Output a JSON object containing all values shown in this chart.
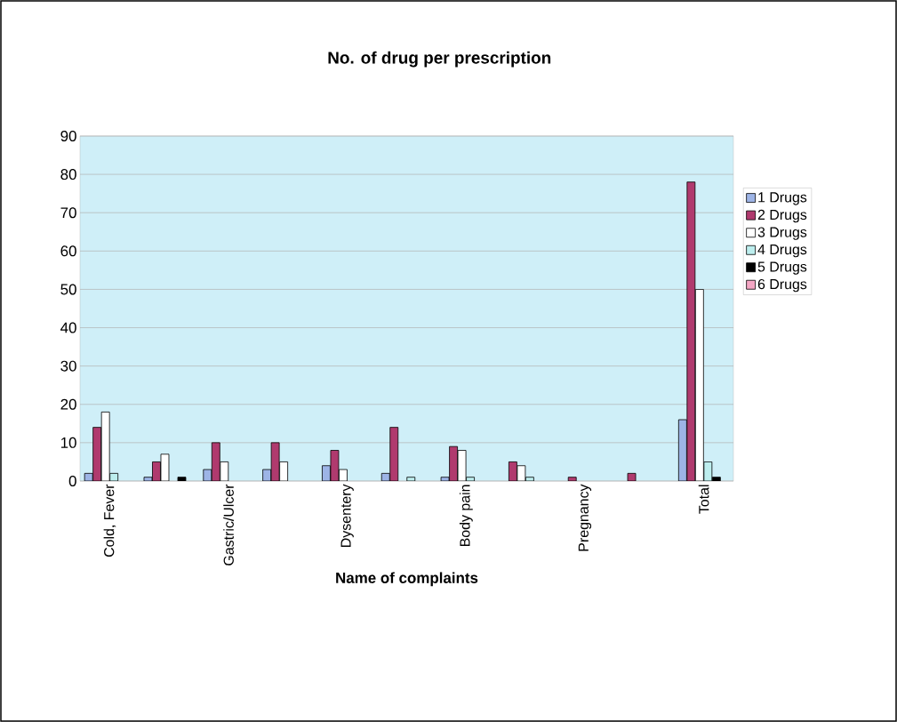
{
  "chart_data": {
    "type": "bar",
    "title": "No. of drug per prescription",
    "xlabel": "Name of complaints",
    "categories": [
      "Cold, Fever",
      null,
      "Gastric/Ulcer",
      null,
      "Dysentery",
      null,
      "Body pain",
      null,
      "Pregnancy",
      null,
      "Total"
    ],
    "series": [
      {
        "name": "1 Drugs",
        "color": "#9db4e6",
        "values": [
          2,
          1,
          3,
          3,
          4,
          2,
          1,
          null,
          null,
          null,
          16
        ]
      },
      {
        "name": "2 Drugs",
        "color": "#b03a6e",
        "values": [
          14,
          5,
          10,
          10,
          8,
          14,
          9,
          5,
          1,
          2,
          78
        ]
      },
      {
        "name": "3 Drugs",
        "color": "#ffffff",
        "values": [
          18,
          7,
          5,
          5,
          3,
          null,
          8,
          4,
          null,
          null,
          50
        ]
      },
      {
        "name": "4 Drugs",
        "color": "#bdeeee",
        "values": [
          2,
          null,
          null,
          null,
          null,
          1,
          1,
          1,
          null,
          null,
          5
        ]
      },
      {
        "name": "5 Drugs",
        "color": "#000000",
        "values": [
          null,
          1,
          null,
          null,
          null,
          null,
          null,
          null,
          null,
          null,
          1
        ]
      },
      {
        "name": "6 Drugs",
        "color": "#f4a6c4",
        "values": [
          null,
          null,
          null,
          null,
          null,
          null,
          null,
          null,
          null,
          null,
          null
        ]
      }
    ],
    "ylim": [
      0,
      90
    ],
    "yticks": [
      0,
      10,
      20,
      30,
      40,
      50,
      60,
      70,
      80,
      90
    ],
    "grid": "y",
    "legend": "right"
  }
}
